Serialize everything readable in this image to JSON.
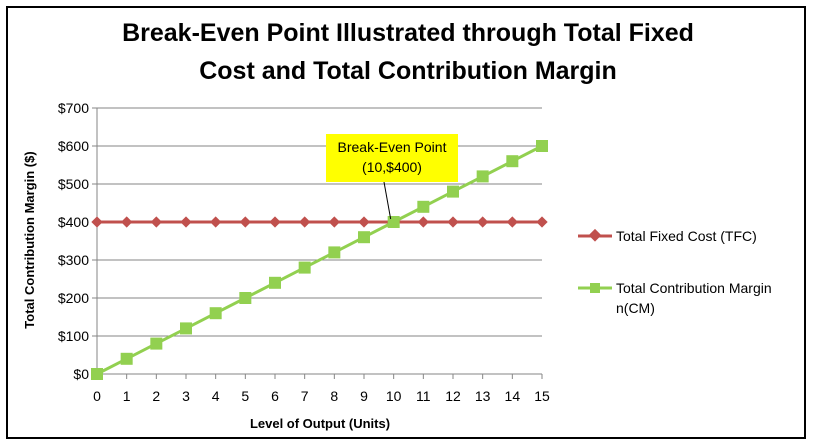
{
  "chart_data": {
    "type": "line",
    "title_line1": "Break-Even Point Illustrated through Total Fixed",
    "title_line2": "Cost and Total Contribution Margin",
    "xlabel": "Level of Output (Units)",
    "ylabel": "Total Contribution Margin ($)",
    "x": [
      0,
      1,
      2,
      3,
      4,
      5,
      6,
      7,
      8,
      9,
      10,
      11,
      12,
      13,
      14,
      15
    ],
    "xlim": [
      0,
      15
    ],
    "ylim": [
      0,
      700
    ],
    "y_ticks": [
      0,
      100,
      200,
      300,
      400,
      500,
      600,
      700
    ],
    "y_tick_labels": [
      "$0",
      "$100",
      "$200",
      "$300",
      "$400",
      "$500",
      "$600",
      "$700"
    ],
    "grid": "horizontal",
    "legend_position": "right",
    "series": [
      {
        "name": "Total Fixed Cost (TFC)",
        "values": [
          400,
          400,
          400,
          400,
          400,
          400,
          400,
          400,
          400,
          400,
          400,
          400,
          400,
          400,
          400,
          400
        ],
        "color": "#c0504d",
        "marker": "diamond"
      },
      {
        "name_line1": "Total Contribution Margin",
        "name_line2": "n(CM)",
        "values": [
          0,
          40,
          80,
          120,
          160,
          200,
          240,
          280,
          320,
          360,
          400,
          440,
          480,
          520,
          560,
          600
        ],
        "color": "#92d050",
        "marker": "square"
      }
    ],
    "annotation": {
      "line1": "Break-Even Point",
      "line2": "(10,$400)",
      "point": [
        10,
        400
      ],
      "fill": "#ffff00"
    }
  }
}
